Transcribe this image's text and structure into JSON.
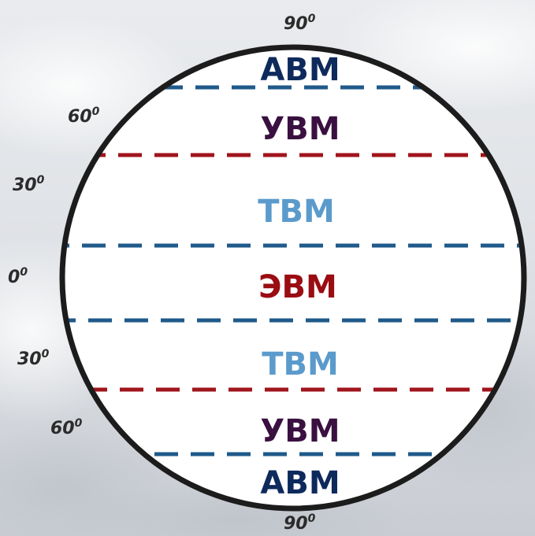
{
  "latitude_labels": {
    "top_90": {
      "value": "90",
      "unit": "0"
    },
    "n_60": {
      "value": "60",
      "unit": "0"
    },
    "n_30": {
      "value": "30",
      "unit": "0"
    },
    "equator_0": {
      "value": "0",
      "unit": "0"
    },
    "s_30": {
      "value": "30",
      "unit": "0"
    },
    "s_60": {
      "value": "60",
      "unit": "0"
    },
    "bottom_90": {
      "value": "90",
      "unit": "0"
    }
  },
  "zones": {
    "north_arctic": "АВМ",
    "north_temperate": "УВМ",
    "north_tropical": "ТВМ",
    "equatorial": "ЭВМ",
    "south_tropical": "ТВМ",
    "south_temperate": "УВМ",
    "south_antarctic": "АВМ"
  },
  "colors": {
    "arctic_text": "#0e2a5c",
    "temperate_text": "#3a1040",
    "tropical_text": "#5b9bcc",
    "equatorial_text": "#9a0d12",
    "blue_dash": "#1f5a8a",
    "red_dash": "#a0151c",
    "circle_stroke": "#1c1c1c"
  }
}
